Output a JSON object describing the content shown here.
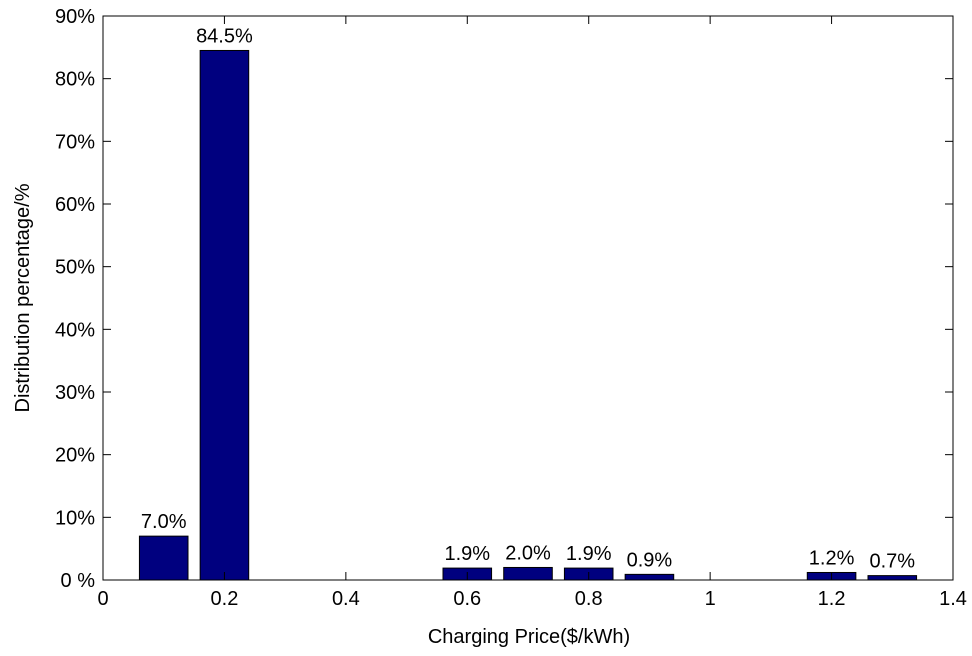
{
  "chart_data": {
    "type": "bar",
    "xlabel": "Charging Price($/kWh)",
    "ylabel": "Distribution percentage/%",
    "xlim": [
      0,
      1.4
    ],
    "ylim": [
      0,
      90
    ],
    "x_ticks": [
      "0",
      "0.2",
      "0.4",
      "0.6",
      "0.8",
      "1",
      "1.2",
      "1.4"
    ],
    "x_tick_values": [
      0,
      0.2,
      0.4,
      0.6,
      0.8,
      1.0,
      1.2,
      1.4
    ],
    "y_ticks": [
      "0 %",
      "10%",
      "20%",
      "30%",
      "40%",
      "50%",
      "60%",
      "70%",
      "80%",
      "90%"
    ],
    "y_tick_values": [
      0,
      10,
      20,
      30,
      40,
      50,
      60,
      70,
      80,
      90
    ],
    "bar_width": 0.08,
    "bars": [
      {
        "x": 0.1,
        "value": 7.0,
        "label": "7.0%"
      },
      {
        "x": 0.2,
        "value": 84.5,
        "label": "84.5%"
      },
      {
        "x": 0.6,
        "value": 1.9,
        "label": "1.9%"
      },
      {
        "x": 0.7,
        "value": 2.0,
        "label": "2.0%"
      },
      {
        "x": 0.8,
        "value": 1.9,
        "label": "1.9%"
      },
      {
        "x": 0.9,
        "value": 0.9,
        "label": "0.9%"
      },
      {
        "x": 1.2,
        "value": 1.2,
        "label": "1.2%"
      },
      {
        "x": 1.3,
        "value": 0.7,
        "label": "0.7%"
      }
    ],
    "bar_color": "#00007F",
    "grid": false,
    "legend": false
  }
}
